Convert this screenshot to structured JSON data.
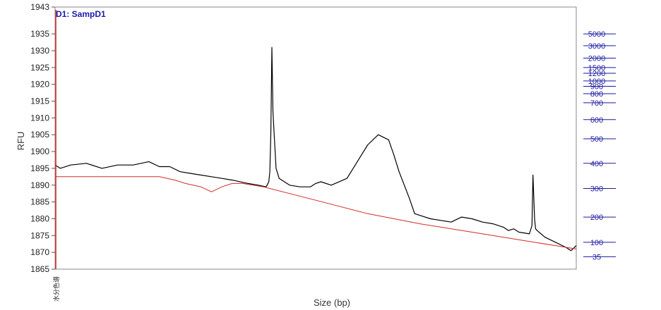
{
  "chart_data": {
    "type": "line",
    "title": "",
    "sample_label": "D1: SampD1",
    "xlabel": "Size (bp)",
    "ylabel": "RFU",
    "xlim": [
      0,
      1000
    ],
    "ylim": [
      1865,
      1943
    ],
    "y_ticks": [
      1943,
      1935,
      1930,
      1925,
      1920,
      1915,
      1910,
      1905,
      1900,
      1895,
      1890,
      1885,
      1880,
      1875,
      1870,
      1865
    ],
    "x_tick_label": "水分色谱",
    "right_ladder_ticks": [
      {
        "label": "5000",
        "rfu": 1935.0
      },
      {
        "label": "3000",
        "rfu": 1931.5
      },
      {
        "label": "2000",
        "rfu": 1927.8
      },
      {
        "label": "1500",
        "rfu": 1925.0
      },
      {
        "label": "1200",
        "rfu": 1923.3
      },
      {
        "label": "1000",
        "rfu": 1921.0
      },
      {
        "label": "900",
        "rfu": 1919.4
      },
      {
        "label": "800",
        "rfu": 1917.2
      },
      {
        "label": "700",
        "rfu": 1914.5
      },
      {
        "label": "600",
        "rfu": 1909.5
      },
      {
        "label": "500",
        "rfu": 1903.8
      },
      {
        "label": "400",
        "rfu": 1896.5
      },
      {
        "label": "300",
        "rfu": 1889.0
      },
      {
        "label": "200",
        "rfu": 1880.5
      },
      {
        "label": "100",
        "rfu": 1873.0
      },
      {
        "label": "35",
        "rfu": 1868.7
      }
    ],
    "series": [
      {
        "name": "",
        "color": "#000000",
        "x": [
          0,
          10,
          30,
          60,
          90,
          120,
          150,
          180,
          200,
          220,
          240,
          260,
          280,
          300,
          320,
          340,
          370,
          390,
          405,
          410,
          412,
          414,
          416,
          418,
          420,
          424,
          430,
          450,
          470,
          490,
          500,
          510,
          530,
          560,
          580,
          600,
          620,
          640,
          650,
          660,
          670,
          680,
          690,
          700,
          720,
          740,
          760,
          780,
          800,
          820,
          840,
          860,
          870,
          880,
          890,
          910,
          915,
          917,
          920,
          922,
          925,
          940,
          960,
          980,
          990,
          1000
        ],
        "y": [
          1896,
          1895,
          1896,
          1896.5,
          1895,
          1896,
          1896,
          1897,
          1895.5,
          1895.5,
          1894,
          1893.5,
          1893,
          1892.5,
          1892,
          1891.5,
          1890.5,
          1890,
          1889.5,
          1891,
          1894,
          1905,
          1931,
          1912,
          1906,
          1895,
          1892,
          1890,
          1889.5,
          1889.5,
          1890.5,
          1891,
          1890,
          1892,
          1897,
          1902,
          1905,
          1903.5,
          1899,
          1894,
          1890,
          1886,
          1881.5,
          1881,
          1880,
          1879.5,
          1879,
          1880.5,
          1880,
          1879,
          1878.5,
          1877.5,
          1876.5,
          1877,
          1876,
          1875.5,
          1878,
          1893,
          1880,
          1877,
          1876.5,
          1874.5,
          1873,
          1871.5,
          1870.5,
          1872
        ]
      },
      {
        "name": "",
        "color": "#d42a2a",
        "x": [
          0,
          30,
          100,
          200,
          230,
          250,
          280,
          300,
          320,
          340,
          360,
          400,
          500,
          600,
          700,
          800,
          900,
          1000
        ],
        "y": [
          1892.5,
          1892.5,
          1892.5,
          1892.5,
          1891.5,
          1890.5,
          1889.5,
          1888,
          1889.5,
          1890.5,
          1890.5,
          1889.5,
          1885.5,
          1881.5,
          1878.5,
          1876,
          1873.5,
          1871
        ]
      }
    ],
    "grid": false,
    "legend": "none"
  }
}
